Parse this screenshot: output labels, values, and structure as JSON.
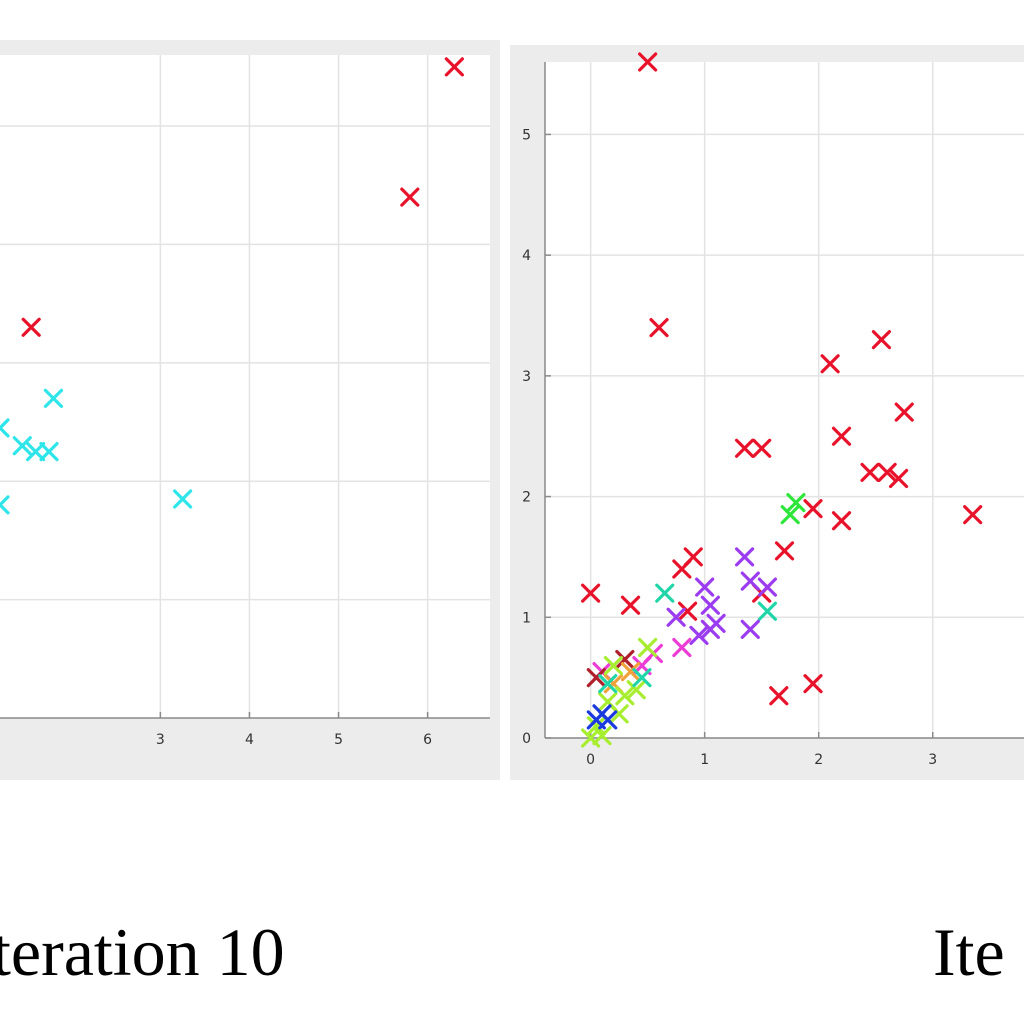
{
  "colors": {
    "red": "#e8132b",
    "cyan": "#2ee6ea",
    "green": "#2ee63a",
    "lime": "#a8ee30",
    "purple": "#9b3cf0",
    "magenta": "#ec3cd6",
    "blue": "#1a3adf",
    "teal": "#20d6a8",
    "orange": "#f0a23a",
    "darkred": "#b0202a"
  },
  "captions": {
    "left": "teration 10",
    "right": "Ite"
  },
  "chart_data": [
    {
      "type": "scatter",
      "title": "",
      "xlabel": "",
      "ylabel": "",
      "xlim": [
        1.2,
        6.7
      ],
      "ylim": [
        0,
        5.6
      ],
      "grid": true,
      "x_ticks": [
        3,
        4,
        5,
        6
      ],
      "x_tick_labels": [
        "3",
        "4",
        "5",
        "6"
      ],
      "y_ticks": [
        1,
        2,
        3,
        4,
        5
      ],
      "y_tick_labels": [],
      "points": [
        {
          "x": 6.3,
          "y": 5.5,
          "color": "red"
        },
        {
          "x": 5.8,
          "y": 4.4,
          "color": "red"
        },
        {
          "x": 1.55,
          "y": 3.3,
          "color": "red"
        },
        {
          "x": 1.8,
          "y": 2.7,
          "color": "cyan"
        },
        {
          "x": 1.2,
          "y": 2.45,
          "color": "cyan"
        },
        {
          "x": 1.45,
          "y": 2.3,
          "color": "cyan"
        },
        {
          "x": 1.6,
          "y": 2.25,
          "color": "cyan"
        },
        {
          "x": 1.75,
          "y": 2.25,
          "color": "cyan"
        },
        {
          "x": 1.2,
          "y": 1.8,
          "color": "cyan"
        },
        {
          "x": 3.25,
          "y": 1.85,
          "color": "cyan"
        }
      ]
    },
    {
      "type": "scatter",
      "title": "",
      "xlabel": "",
      "ylabel": "",
      "xlim": [
        -0.4,
        3.8
      ],
      "ylim": [
        0,
        5.6
      ],
      "grid": true,
      "x_ticks": [
        0,
        1,
        2,
        3
      ],
      "x_tick_labels": [
        "0",
        "1",
        "2",
        "3"
      ],
      "y_ticks": [
        0,
        1,
        2,
        3,
        4,
        5
      ],
      "y_tick_labels": [
        "0",
        "1",
        "2",
        "3",
        "4",
        "5"
      ],
      "points": [
        {
          "x": 0.5,
          "y": 5.6,
          "color": "red"
        },
        {
          "x": 0.6,
          "y": 3.4,
          "color": "red"
        },
        {
          "x": 2.1,
          "y": 3.1,
          "color": "red"
        },
        {
          "x": 2.55,
          "y": 3.3,
          "color": "red"
        },
        {
          "x": 2.75,
          "y": 2.7,
          "color": "red"
        },
        {
          "x": 1.35,
          "y": 2.4,
          "color": "red"
        },
        {
          "x": 1.5,
          "y": 2.4,
          "color": "red"
        },
        {
          "x": 2.2,
          "y": 2.5,
          "color": "red"
        },
        {
          "x": 2.45,
          "y": 2.2,
          "color": "red"
        },
        {
          "x": 2.6,
          "y": 2.2,
          "color": "red"
        },
        {
          "x": 2.7,
          "y": 2.15,
          "color": "red"
        },
        {
          "x": 3.35,
          "y": 1.85,
          "color": "red"
        },
        {
          "x": 2.2,
          "y": 1.8,
          "color": "red"
        },
        {
          "x": 1.95,
          "y": 1.9,
          "color": "red"
        },
        {
          "x": 1.7,
          "y": 1.55,
          "color": "red"
        },
        {
          "x": 0.0,
          "y": 1.2,
          "color": "red"
        },
        {
          "x": 0.35,
          "y": 1.1,
          "color": "red"
        },
        {
          "x": 0.9,
          "y": 1.5,
          "color": "red"
        },
        {
          "x": 0.8,
          "y": 1.4,
          "color": "red"
        },
        {
          "x": 0.85,
          "y": 1.05,
          "color": "red"
        },
        {
          "x": 1.65,
          "y": 0.35,
          "color": "red"
        },
        {
          "x": 1.95,
          "y": 0.45,
          "color": "red"
        },
        {
          "x": 1.5,
          "y": 1.2,
          "color": "red"
        },
        {
          "x": 1.8,
          "y": 1.95,
          "color": "green"
        },
        {
          "x": 1.75,
          "y": 1.85,
          "color": "green"
        },
        {
          "x": 0.65,
          "y": 1.2,
          "color": "teal"
        },
        {
          "x": 1.55,
          "y": 1.05,
          "color": "teal"
        },
        {
          "x": 1.35,
          "y": 1.5,
          "color": "purple"
        },
        {
          "x": 1.4,
          "y": 1.3,
          "color": "purple"
        },
        {
          "x": 1.55,
          "y": 1.25,
          "color": "purple"
        },
        {
          "x": 1.0,
          "y": 1.25,
          "color": "purple"
        },
        {
          "x": 1.05,
          "y": 1.1,
          "color": "purple"
        },
        {
          "x": 1.05,
          "y": 0.9,
          "color": "purple"
        },
        {
          "x": 0.95,
          "y": 0.85,
          "color": "purple"
        },
        {
          "x": 1.1,
          "y": 0.95,
          "color": "purple"
        },
        {
          "x": 1.4,
          "y": 0.9,
          "color": "purple"
        },
        {
          "x": 0.75,
          "y": 1.0,
          "color": "purple"
        },
        {
          "x": 0.8,
          "y": 0.75,
          "color": "magenta"
        },
        {
          "x": 0.55,
          "y": 0.7,
          "color": "magenta"
        },
        {
          "x": 0.45,
          "y": 0.6,
          "color": "magenta"
        },
        {
          "x": 0.1,
          "y": 0.55,
          "color": "magenta"
        },
        {
          "x": 0.3,
          "y": 0.65,
          "color": "darkred"
        },
        {
          "x": 0.05,
          "y": 0.5,
          "color": "darkred"
        },
        {
          "x": 0.2,
          "y": 0.45,
          "color": "orange"
        },
        {
          "x": 0.35,
          "y": 0.55,
          "color": "orange"
        },
        {
          "x": 0.3,
          "y": 0.35,
          "color": "lime"
        },
        {
          "x": 0.4,
          "y": 0.4,
          "color": "lime"
        },
        {
          "x": 0.15,
          "y": 0.3,
          "color": "lime"
        },
        {
          "x": 0.25,
          "y": 0.2,
          "color": "lime"
        },
        {
          "x": 0.05,
          "y": 0.1,
          "color": "lime"
        },
        {
          "x": 0.0,
          "y": 0.0,
          "color": "lime"
        },
        {
          "x": 0.1,
          "y": 0.02,
          "color": "lime"
        },
        {
          "x": 0.2,
          "y": 0.6,
          "color": "lime"
        },
        {
          "x": 0.5,
          "y": 0.75,
          "color": "lime"
        },
        {
          "x": 0.15,
          "y": 0.45,
          "color": "teal"
        },
        {
          "x": 0.45,
          "y": 0.5,
          "color": "teal"
        },
        {
          "x": 0.05,
          "y": 0.15,
          "color": "blue"
        },
        {
          "x": 0.15,
          "y": 0.15,
          "color": "blue"
        },
        {
          "x": 0.1,
          "y": 0.2,
          "color": "blue"
        }
      ]
    }
  ]
}
